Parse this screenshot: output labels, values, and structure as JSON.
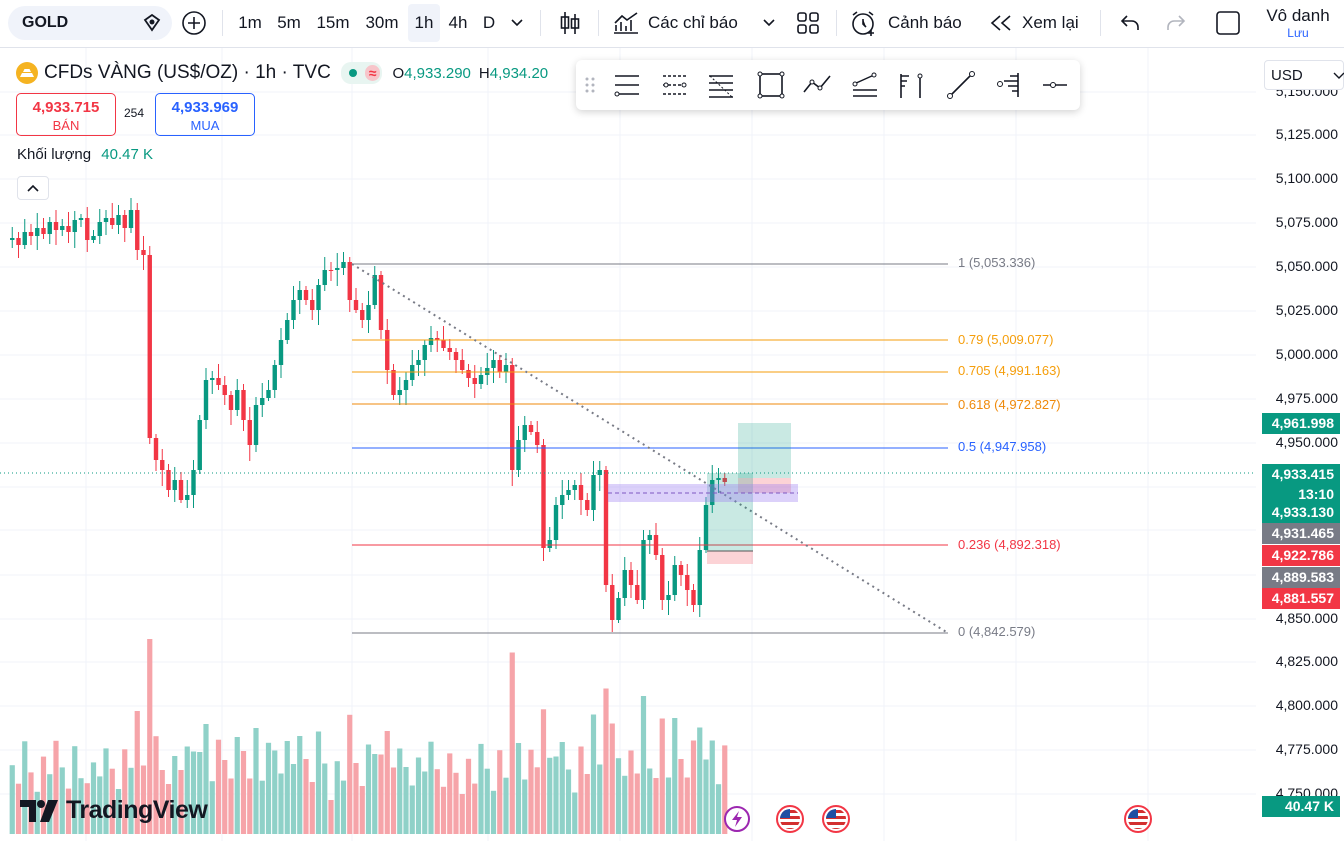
{
  "toolbar": {
    "symbol": "GOLD",
    "intervals": [
      "1m",
      "5m",
      "15m",
      "30m",
      "1h",
      "4h",
      "D"
    ],
    "active_interval": "1h",
    "indicators_label": "Các chỉ báo",
    "alert_label": "Cảnh báo",
    "replay_label": "Xem lại",
    "user_name": "Vô danh",
    "save_label": "Lưu"
  },
  "legend": {
    "title": "CFDs VÀNG (US$/OZ) · 1h · TVC",
    "open_prefix": "O",
    "open_value": "4,933.290",
    "high_prefix": "H",
    "high_value": "4,934.20",
    "sell_price": "4,933.715",
    "sell_label": "BÁN",
    "spread": "254",
    "buy_price": "4,933.969",
    "buy_label": "MUA",
    "volume_label": "Khối lượng",
    "volume_value": "40.47 K"
  },
  "price_axis": {
    "currency": "USD",
    "ticks": [
      "5,150.000",
      "5,125.000",
      "5,100.000",
      "5,075.000",
      "5,050.000",
      "5,025.000",
      "5,000.000",
      "4,975.000",
      "4,950.000",
      "4,925.000",
      "4,900.000",
      "4,875.000",
      "4,850.000",
      "4,825.000",
      "4,800.000",
      "4,775.000",
      "4,750.000"
    ],
    "tags": [
      {
        "text": "4,961.998",
        "color": "#089981"
      },
      {
        "text": "4,933.415",
        "color": "#089981"
      },
      {
        "text": "13:10",
        "color": "#089981"
      },
      {
        "text": "4,933.130",
        "color": "#089981"
      },
      {
        "text": "4,931.465",
        "color": "#787b86"
      },
      {
        "text": "4,922.786",
        "color": "#f23645"
      },
      {
        "text": "4,889.583",
        "color": "#787b86"
      },
      {
        "text": "4,881.557",
        "color": "#f23645"
      },
      {
        "text": "40.47 K",
        "color": "#089981"
      }
    ]
  },
  "fib": [
    {
      "label": "1 (5,053.336)",
      "color": "#787b86"
    },
    {
      "label": "0.79 (5,009.077)",
      "color": "#f59e0b"
    },
    {
      "label": "0.705 (4,991.163)",
      "color": "#f59e0b"
    },
    {
      "label": "0.618 (4,972.827)",
      "color": "#ef8a0b"
    },
    {
      "label": "0.5 (4,947.958)",
      "color": "#2962ff"
    },
    {
      "label": "0.236 (4,892.318)",
      "color": "#f23645"
    },
    {
      "label": "0 (4,842.579)",
      "color": "#787b86"
    }
  ],
  "watermark": "TradingView",
  "colors": {
    "up": "#089981",
    "down": "#f23645",
    "vol_up": "#8fd1c8",
    "vol_down": "#f6a4a9"
  }
}
